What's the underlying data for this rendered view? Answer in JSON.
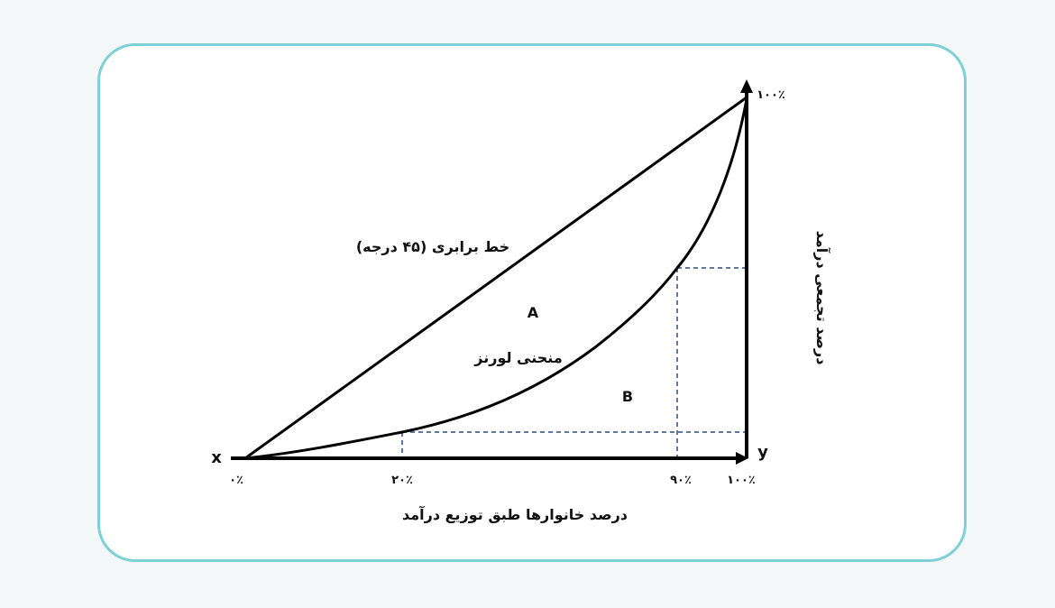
{
  "diagram": {
    "x_axis_letter": "x",
    "y_axis_letter": "y",
    "x_ticks": [
      "۰٪",
      "۲۰٪",
      "۹۰٪",
      "۱۰۰٪"
    ],
    "y_top_tick": "۱۰۰٪",
    "equality_line_label": "خط برابری (۴۵ درجه)",
    "lorenz_curve_label": "منحنی لورنز",
    "region_a_label": "A",
    "region_b_label": "B",
    "x_axis_title": "درصد خانوارها طبق توزیع درآمد",
    "y_axis_title": "درصد تجمعی درآمد",
    "colors": {
      "card_border": "#7dd0d6",
      "lines": "#000000",
      "guides": "#2c4a80"
    }
  }
}
